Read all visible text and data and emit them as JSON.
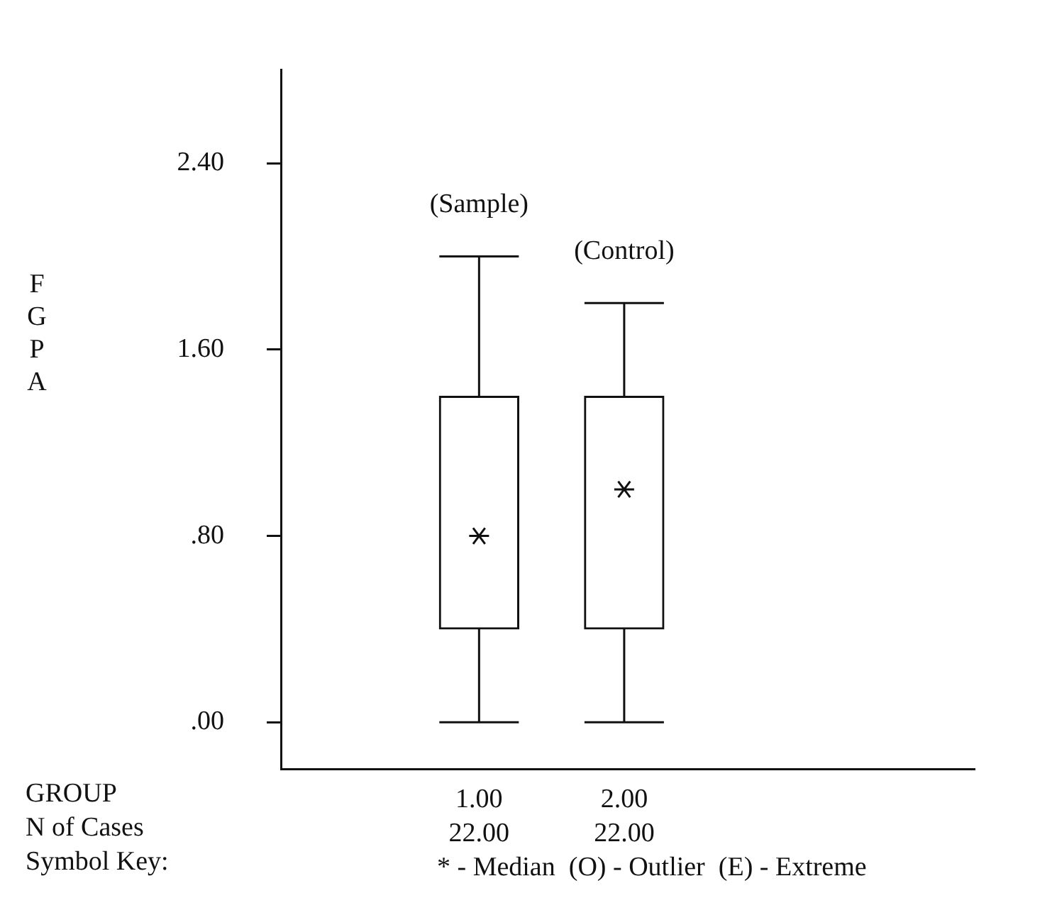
{
  "chart_data": {
    "type": "box",
    "categories": [
      "1.00",
      "2.00"
    ],
    "boxes": [
      {
        "low": 0,
        "q1": 0.4,
        "median": 0.8,
        "q3": 1.4,
        "high": 2.0
      },
      {
        "low": 0,
        "q1": 0.4,
        "median": 1.0,
        "q3": 1.4,
        "high": 1.8
      }
    ],
    "ylabel": "FGPA",
    "xlabel": "GROUP",
    "ylim": [
      -0.2,
      2.8
    ],
    "yticks": [
      {
        "value": 0,
        "label": ".00"
      },
      {
        "value": 0.8,
        "label": ".80"
      },
      {
        "value": 1.6,
        "label": "1.60"
      },
      {
        "value": 2.4,
        "label": "2.40"
      }
    ],
    "annotations": [
      "(Sample)",
      "(Control)",
      "N of Cases",
      "22.00",
      "22.00",
      "Symbol Key:",
      "* - Median  (O) - Outlier  (E) - Extreme"
    ],
    "grid": false,
    "legend": false
  }
}
